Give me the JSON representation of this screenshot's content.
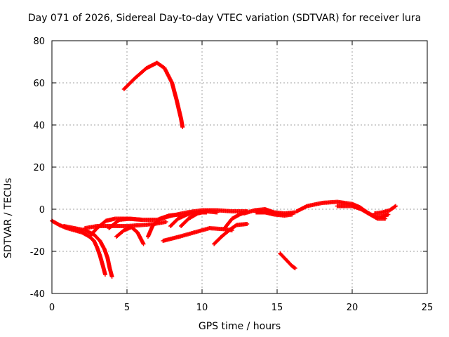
{
  "chart_data": {
    "type": "scatter",
    "title": "Day 071 of 2026, Sidereal Day-to-day VTEC variation (SDTVAR) for receiver lura",
    "xlabel": "GPS time / hours",
    "ylabel": "SDTVAR / TECUs",
    "xlim": [
      0,
      25
    ],
    "ylim": [
      -40,
      80
    ],
    "xticks": [
      0,
      5,
      10,
      15,
      20,
      25
    ],
    "yticks": [
      -40,
      -20,
      0,
      20,
      40,
      60,
      80
    ],
    "grid": true,
    "color": "#ff0000",
    "marker": "+",
    "series": [
      {
        "name": "arc-1",
        "points": [
          [
            0.0,
            -5.5
          ],
          [
            0.5,
            -7.5
          ],
          [
            1.0,
            -9
          ],
          [
            1.5,
            -10
          ],
          [
            2.0,
            -11
          ],
          [
            2.5,
            -13
          ],
          [
            2.8,
            -15
          ],
          [
            3.0,
            -18
          ],
          [
            3.2,
            -22
          ],
          [
            3.4,
            -27
          ],
          [
            3.55,
            -31
          ]
        ]
      },
      {
        "name": "arc-2",
        "points": [
          [
            0.8,
            -8
          ],
          [
            1.5,
            -9
          ],
          [
            2.2,
            -10
          ],
          [
            2.8,
            -12
          ],
          [
            3.2,
            -15
          ],
          [
            3.5,
            -19
          ],
          [
            3.7,
            -23
          ],
          [
            3.85,
            -28
          ],
          [
            4.0,
            -32
          ]
        ]
      },
      {
        "name": "arc-3",
        "points": [
          [
            2.2,
            -9
          ],
          [
            3.0,
            -8
          ],
          [
            4.0,
            -8
          ],
          [
            5.0,
            -8
          ],
          [
            6.0,
            -7.5
          ],
          [
            6.8,
            -7
          ],
          [
            7.6,
            -6
          ]
        ]
      },
      {
        "name": "arc-4",
        "points": [
          [
            2.5,
            -13
          ],
          [
            3.0,
            -9
          ],
          [
            3.6,
            -5.5
          ],
          [
            4.2,
            -4.5
          ],
          [
            5.0,
            -4.5
          ],
          [
            6.0,
            -5
          ],
          [
            7.0,
            -5
          ],
          [
            8.0,
            -3
          ],
          [
            9.0,
            -1.5
          ],
          [
            10.0,
            -0.5
          ],
          [
            11.0,
            -0.5
          ],
          [
            12.0,
            -1
          ],
          [
            13.0,
            -1
          ]
        ]
      },
      {
        "name": "arc-5",
        "points": [
          [
            4.3,
            -13
          ],
          [
            4.8,
            -10
          ],
          [
            5.3,
            -8.5
          ],
          [
            5.7,
            -11
          ],
          [
            6.1,
            -16.5
          ]
        ]
      },
      {
        "name": "arc-6",
        "points": [
          [
            3.8,
            -9
          ],
          [
            4.5,
            -5
          ],
          [
            5.2,
            -4.5
          ],
          [
            6.0,
            -5
          ]
        ]
      },
      {
        "name": "arc-7",
        "points": [
          [
            6.4,
            -13
          ],
          [
            6.7,
            -8
          ],
          [
            7.2,
            -4.5
          ],
          [
            7.8,
            -3
          ],
          [
            8.5,
            -2.5
          ]
        ]
      },
      {
        "name": "arc-8",
        "points": [
          [
            7.9,
            -8
          ],
          [
            8.4,
            -4.5
          ],
          [
            9.0,
            -2.5
          ],
          [
            9.7,
            -1.5
          ],
          [
            10.3,
            -1.5
          ]
        ]
      },
      {
        "name": "arc-9",
        "points": [
          [
            8.6,
            -8
          ],
          [
            9.1,
            -4.5
          ],
          [
            9.7,
            -2
          ],
          [
            10.3,
            -1
          ],
          [
            11.0,
            -1.5
          ]
        ]
      },
      {
        "name": "arc-10",
        "points": [
          [
            7.4,
            -15
          ],
          [
            8.5,
            -13
          ],
          [
            9.5,
            -11
          ],
          [
            10.5,
            -9
          ],
          [
            11.5,
            -9.5
          ],
          [
            12.0,
            -10
          ]
        ]
      },
      {
        "name": "arc-11",
        "points": [
          [
            10.8,
            -16.5
          ],
          [
            11.3,
            -13
          ],
          [
            11.8,
            -10
          ],
          [
            12.3,
            -7.5
          ],
          [
            13.0,
            -7
          ]
        ]
      },
      {
        "name": "arc-12",
        "points": [
          [
            11.5,
            -9
          ],
          [
            12.0,
            -4.5
          ],
          [
            12.5,
            -2.5
          ],
          [
            13.0,
            -1
          ]
        ]
      },
      {
        "name": "arc-13",
        "points": [
          [
            12.8,
            -2
          ],
          [
            13.5,
            -0.5
          ],
          [
            14.2,
            0
          ],
          [
            14.8,
            -1.5
          ],
          [
            15.5,
            -2
          ],
          [
            16.2,
            -1.5
          ]
        ]
      },
      {
        "name": "arc-14",
        "points": [
          [
            13.6,
            -1.5
          ],
          [
            14.2,
            -1.5
          ],
          [
            14.8,
            -2.5
          ],
          [
            15.5,
            -3
          ],
          [
            16.0,
            -2.5
          ]
        ]
      },
      {
        "name": "arc-15",
        "points": [
          [
            15.2,
            -21
          ],
          [
            15.6,
            -24
          ],
          [
            16.0,
            -27
          ],
          [
            16.2,
            -28
          ]
        ]
      },
      {
        "name": "arc-16",
        "points": [
          [
            16.3,
            -1
          ],
          [
            17.0,
            1.5
          ],
          [
            18.0,
            3
          ],
          [
            19.0,
            3.5
          ],
          [
            20.0,
            2.5
          ],
          [
            20.5,
            1
          ],
          [
            21.0,
            -1.5
          ],
          [
            21.5,
            -3.5
          ],
          [
            22.0,
            -3.5
          ],
          [
            22.4,
            -2.5
          ]
        ]
      },
      {
        "name": "arc-17",
        "points": [
          [
            19.0,
            1.5
          ],
          [
            20.0,
            1.5
          ],
          [
            20.6,
            0
          ],
          [
            21.2,
            -2.5
          ],
          [
            21.7,
            -4.5
          ],
          [
            22.2,
            -4.5
          ]
        ]
      },
      {
        "name": "arc-18",
        "points": [
          [
            21.5,
            -2
          ],
          [
            22.0,
            -1.5
          ],
          [
            22.5,
            -0.5
          ],
          [
            22.9,
            1.5
          ]
        ]
      },
      {
        "name": "arc-19",
        "points": [
          [
            4.8,
            57
          ],
          [
            5.5,
            62
          ],
          [
            6.3,
            67
          ],
          [
            7.0,
            69.5
          ],
          [
            7.5,
            67
          ],
          [
            8.0,
            60
          ],
          [
            8.3,
            52
          ],
          [
            8.6,
            43
          ],
          [
            8.7,
            39
          ]
        ]
      }
    ]
  }
}
